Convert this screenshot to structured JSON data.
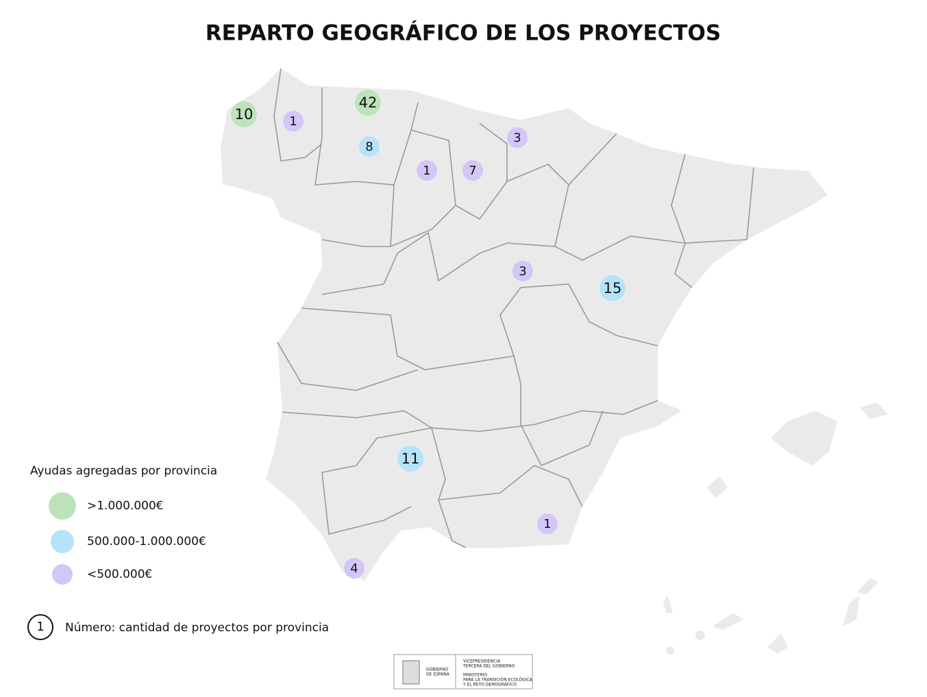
{
  "title": "REPARTO GEOGRÁFICO DE LOS PROYECTOS",
  "markers": [
    {
      "count": 10,
      "color": "#bde3ba"
    },
    {
      "count": 1,
      "color": "#d3c6f8"
    },
    {
      "count": 42,
      "color": "#bde3ba"
    },
    {
      "count": 8,
      "color": "#b5e3fb"
    },
    {
      "count": 1,
      "color": "#d3c6f8"
    },
    {
      "count": 7,
      "color": "#d3c6f8"
    },
    {
      "count": 3,
      "color": "#d3c6f8"
    },
    {
      "count": 3,
      "color": "#d3c6f8"
    },
    {
      "count": 15,
      "color": "#b5e3fb"
    },
    {
      "count": 11,
      "color": "#b5e3fb"
    },
    {
      "count": 1,
      "color": "#d3c6f8"
    },
    {
      "count": 4,
      "color": "#d3c6f8"
    }
  ],
  "legend": {
    "title": "Ayudas agregadas por provincia",
    "items": [
      {
        "label": ">1.000.000€",
        "color": "#bde3ba"
      },
      {
        "label": "500.000-1.000.000€",
        "color": "#b5e3fb"
      },
      {
        "label": "<500.000€",
        "color": "#d3c6f8"
      }
    ],
    "note_symbol": 1,
    "note": "Número: cantidad de proyectos por provincia"
  },
  "logo": {
    "left": [
      "GOBIERNO",
      "DE ESPAÑA"
    ],
    "right": [
      "VICEPRESIDENCIA",
      "TERCERA DEL GOBIERNO",
      "MINISTERIO",
      "PARA LA TRANSICIÓN ECOLÓGICA",
      "Y EL RETO DEMOGRÁFICO"
    ]
  }
}
